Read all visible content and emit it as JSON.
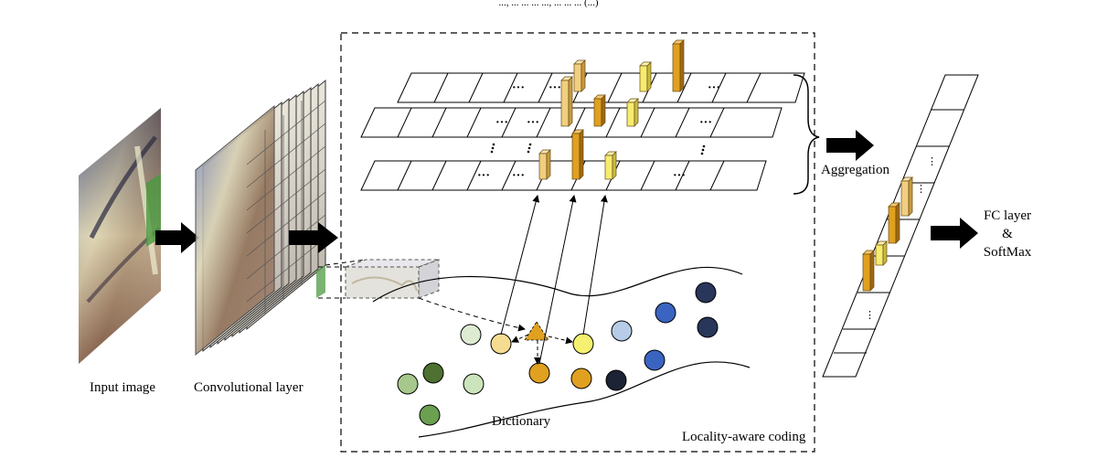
{
  "header": {
    "partial_text": "..., ... ... ... ..., ... ... ... (...)"
  },
  "labels": {
    "input_image": "Input image",
    "conv_layer": "Convolutional layer",
    "aggregation": "Aggregation",
    "fc_line1": "FC layer",
    "fc_line2": "&",
    "fc_line3": "SoftMax",
    "dictionary": "Dictionary",
    "locality": "Locality-aware coding"
  },
  "colors": {
    "dark_orange": "#e0a020",
    "light_orange": "#f0c860",
    "pale_yellow": "#f5dc90",
    "bright_yellow": "#f5f070",
    "arrow": "#000000"
  },
  "dictionary_atoms": [
    {
      "color": "#dcebd2"
    },
    {
      "color": "#f5dc90"
    },
    {
      "color": "#f5f070"
    },
    {
      "color": "#b7cce8"
    },
    {
      "color": "#3a64c0"
    },
    {
      "color": "#28365a"
    },
    {
      "color": "#28365a"
    },
    {
      "color": "#3a64c0"
    },
    {
      "color": "#4e7030"
    },
    {
      "color": "#a6c88c"
    },
    {
      "color": "#cce4bc"
    },
    {
      "color": "#e0a020"
    },
    {
      "color": "#e0a020"
    },
    {
      "color": "#1c2334"
    },
    {
      "color": "#6aa050"
    }
  ]
}
